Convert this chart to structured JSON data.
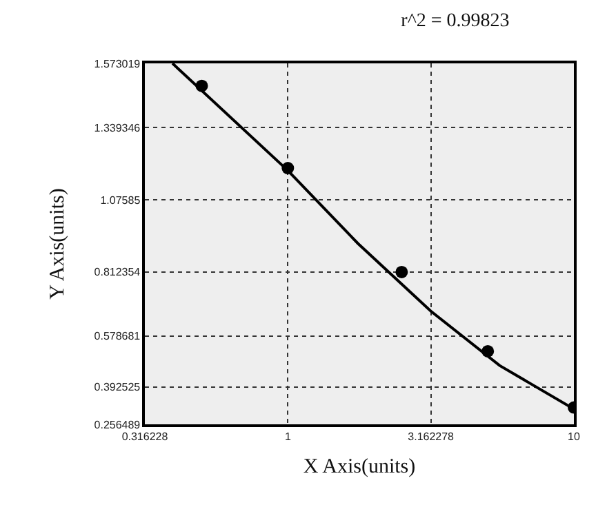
{
  "chart_data": {
    "type": "scatter",
    "title": "r^2 = 0.99823",
    "xlabel": "X Axis(units)",
    "ylabel": "Y Axis(units)",
    "log": "x",
    "grid": true,
    "marker": "circle",
    "xlim": [
      0.316228,
      10
    ],
    "xticks": [
      0.316228,
      1,
      3.162278,
      10
    ],
    "ylim": [
      0.256489,
      1.573019
    ],
    "yticks": [
      0.256489,
      0.392525,
      0.578681,
      0.812354,
      1.07585,
      1.339346,
      1.573019
    ],
    "series": [
      {
        "color": "#000000",
        "x": [
          0.5,
          1,
          2.5,
          5,
          10
        ],
        "values": [
          1.491,
          1.191,
          0.812,
          0.523,
          0.318
        ]
      },
      {
        "type": "line",
        "color": "#000000",
        "marker": "none",
        "x": [
          0.395,
          1,
          1.758,
          3.162,
          5.5,
          10
        ],
        "values": [
          1.573,
          1.182,
          0.916,
          0.669,
          0.471,
          0.312
        ]
      }
    ]
  }
}
